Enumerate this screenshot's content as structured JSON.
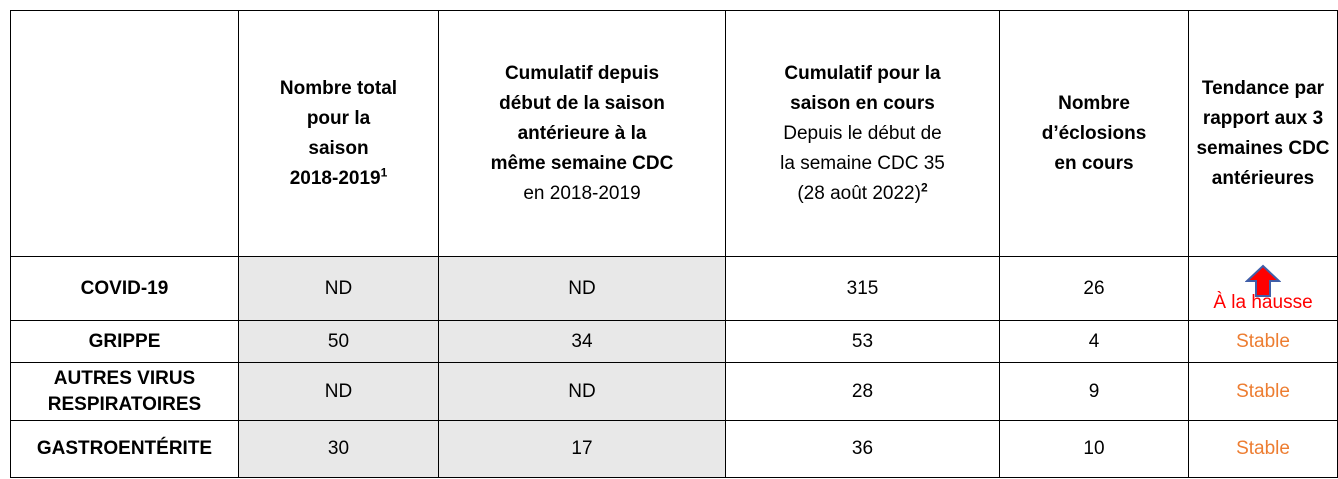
{
  "table": {
    "header": [
      {
        "bold": [
          "Nombre total",
          "pour la",
          "saison",
          "2018-2019"
        ],
        "normal": [],
        "sup": "1"
      },
      {
        "bold": [
          "Cumulatif depuis",
          "début de la saison",
          "antérieure à la",
          "même semaine CDC"
        ],
        "normal": [
          "en 2018-2019"
        ]
      },
      {
        "bold": [
          "Cumulatif pour la",
          "saison en cours"
        ],
        "normal": [
          "Depuis le début de",
          "la semaine CDC 35",
          "(28 août 2022)"
        ],
        "sup": "2"
      },
      {
        "bold": [
          "Nombre",
          "d’éclosions",
          "en cours"
        ],
        "normal": []
      },
      {
        "bold": [
          "Tendance par",
          "rapport aux 3",
          "semaines CDC",
          "antérieures"
        ],
        "normal": []
      }
    ],
    "rows": [
      [
        [
          "COVID-19"
        ],
        "ND",
        "ND",
        315,
        26,
        "À la hausse"
      ],
      [
        [
          "GRIPPE"
        ],
        50,
        34,
        53,
        4,
        "Stable"
      ],
      [
        [
          "AUTRES VIRUS",
          "RESPIRATOIRES"
        ],
        "ND",
        "ND",
        28,
        9,
        "Stable"
      ],
      [
        [
          "GASTROENTÉRITE"
        ],
        30,
        17,
        36,
        10,
        "Stable"
      ]
    ]
  }
}
